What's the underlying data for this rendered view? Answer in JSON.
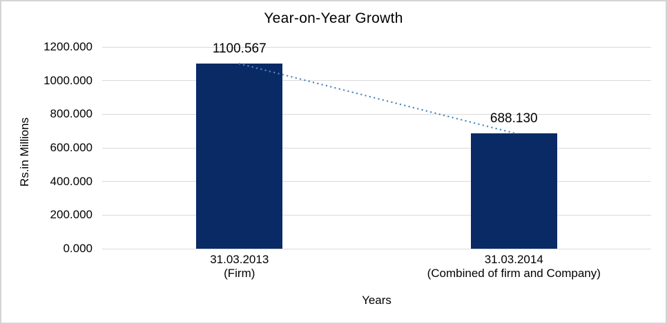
{
  "chart_data": {
    "type": "bar",
    "title": "Year-on-Year Growth",
    "xlabel": "Years",
    "ylabel": "Rs.in Millions",
    "categories": [
      "31.03.2013 (Firm)",
      "31.03.2014 (Combined of firm and Company)"
    ],
    "category_lines": [
      [
        "31.03.2013",
        "(Firm)"
      ],
      [
        "31.03.2014",
        "(Combined of firm and Company)"
      ]
    ],
    "values": [
      1100.567,
      688.13
    ],
    "data_labels": [
      "1100.567",
      "688.130"
    ],
    "ylim": [
      0,
      1200
    ],
    "yticks": [
      0,
      200,
      400,
      600,
      800,
      1000,
      1200
    ],
    "ytick_labels": [
      "0.000",
      "200.000",
      "400.000",
      "600.000",
      "800.000",
      "1000.000",
      "1200.000"
    ],
    "grid": true,
    "legend": "none",
    "colors": {
      "bar_fill": "#0a2a66",
      "trendline": "#4f87c5",
      "gridline": "#d9d9d9",
      "text": "#000000",
      "frame_border": "#d4d4d4"
    },
    "trendline": {
      "style": "dotted",
      "connects": "bar tops from first to second category"
    }
  }
}
